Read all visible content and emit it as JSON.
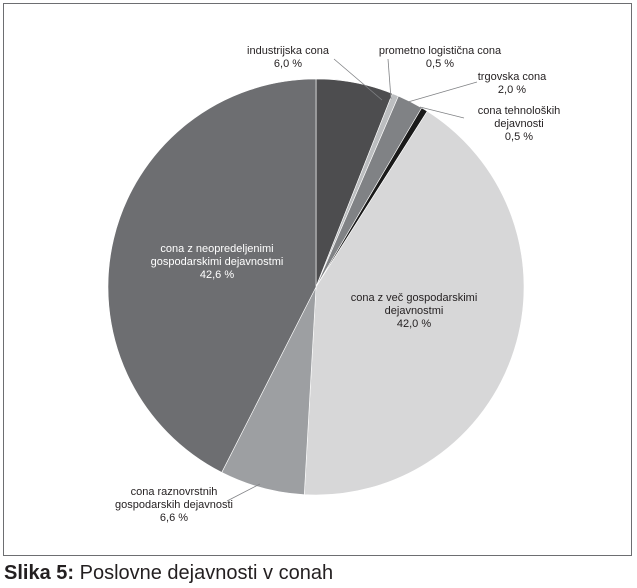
{
  "chart_data": {
    "type": "pie",
    "slices": [
      {
        "label": [
          "industrijska cona",
          "6,0 %"
        ],
        "value": 6.0,
        "color": "#4d4d4f"
      },
      {
        "label": [
          "prometno logistična cona",
          "0,5 %"
        ],
        "value": 0.5,
        "color": "#bcbec0"
      },
      {
        "label": [
          "trgovska cona",
          "2,0 %"
        ],
        "value": 2.0,
        "color": "#808285"
      },
      {
        "label": [
          "cona tehnoloških",
          "dejavnosti",
          "0,5 %"
        ],
        "value": 0.5,
        "color": "#1a1a1a"
      },
      {
        "label": [
          "cona z več gospodarskimi",
          "dejavnostmi",
          "42,0 %"
        ],
        "value": 42.0,
        "color": "#d7d7d8"
      },
      {
        "label": [
          "cona raznovrstnih",
          "gospodarskih dejavnosti",
          "6,6 %"
        ],
        "value": 6.6,
        "color": "#9d9fa2"
      },
      {
        "label": [
          "cona z neopredeljenimi",
          "gospodarskimi dejavnostmi",
          "42,6 %"
        ],
        "value": 42.6,
        "color": "#6d6e71"
      }
    ]
  },
  "caption": {
    "prefix": "Slika 5:",
    "text": " Poslovne dejavnosti v conah"
  }
}
